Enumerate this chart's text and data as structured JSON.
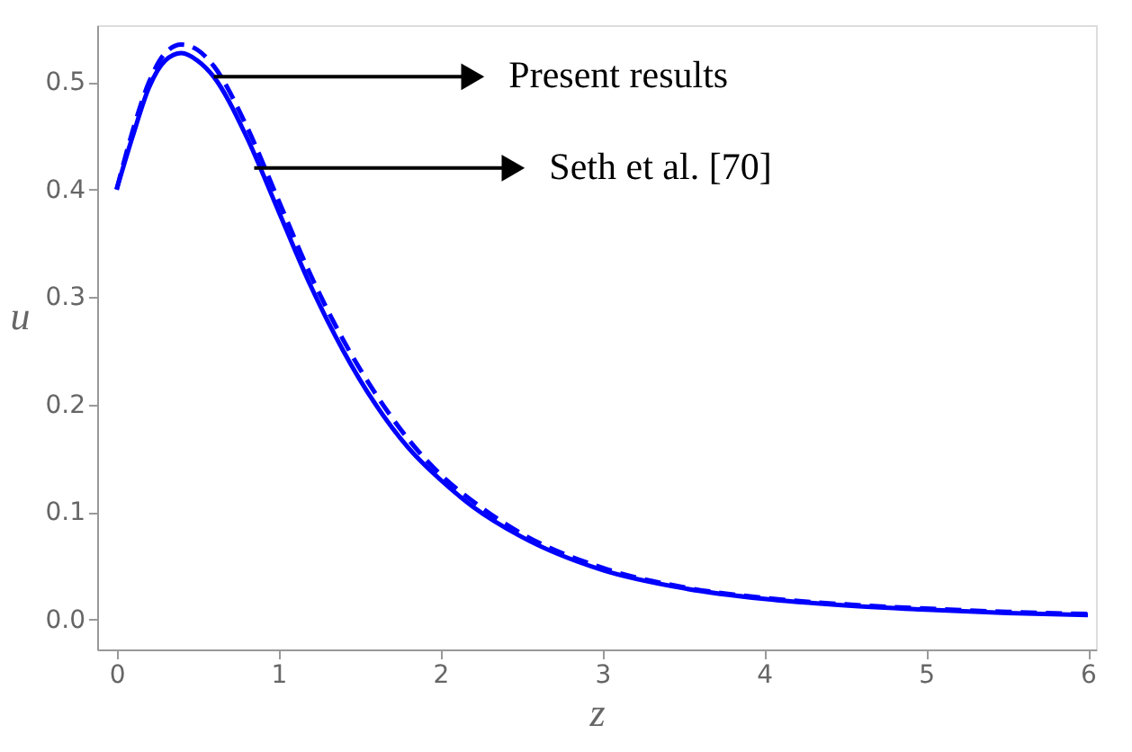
{
  "chart_data": {
    "type": "line",
    "xlabel": "z",
    "ylabel": "u",
    "xlim": [
      -0.12,
      6.05
    ],
    "ylim": [
      -0.028,
      0.553
    ],
    "xticks": [
      0,
      1,
      2,
      3,
      4,
      5,
      6
    ],
    "yticks": [
      {
        "value": 0,
        "label": "0.0"
      },
      0.1,
      0.2,
      0.3,
      0.4,
      0.5
    ],
    "grid": false,
    "marker": "none",
    "series": [
      {
        "color": "#0000ff",
        "line_style": "dashed",
        "x": [
          0,
          0.1,
          0.2,
          0.3,
          0.4,
          0.5,
          0.6,
          0.8,
          1.0,
          1.2,
          1.4,
          1.6,
          1.8,
          2.0,
          2.2,
          2.5,
          3.0,
          3.5,
          4.0,
          4.5,
          5.0,
          5.5,
          6.0
        ],
        "values": [
          0.4,
          0.455,
          0.5,
          0.527,
          0.535,
          0.53,
          0.515,
          0.46,
          0.39,
          0.32,
          0.26,
          0.21,
          0.168,
          0.135,
          0.11,
          0.08,
          0.048,
          0.03,
          0.02,
          0.014,
          0.01,
          0.007,
          0.005
        ]
      },
      {
        "color": "#0000ff",
        "line_style": "solid",
        "x": [
          0,
          0.1,
          0.2,
          0.3,
          0.4,
          0.5,
          0.6,
          0.8,
          1.0,
          1.2,
          1.4,
          1.6,
          1.8,
          2.0,
          2.2,
          2.5,
          3.0,
          3.5,
          4.0,
          4.5,
          5.0,
          5.5,
          6.0
        ],
        "values": [
          0.4,
          0.45,
          0.495,
          0.52,
          0.527,
          0.52,
          0.505,
          0.45,
          0.38,
          0.31,
          0.25,
          0.2,
          0.16,
          0.13,
          0.105,
          0.077,
          0.046,
          0.029,
          0.019,
          0.013,
          0.009,
          0.006,
          0.004
        ]
      }
    ],
    "annotations": [
      {
        "text": "Present results",
        "x": 0.6,
        "y": 0.505
      },
      {
        "text": "Seth et al. [70]",
        "x": 0.85,
        "y": 0.42
      }
    ]
  }
}
